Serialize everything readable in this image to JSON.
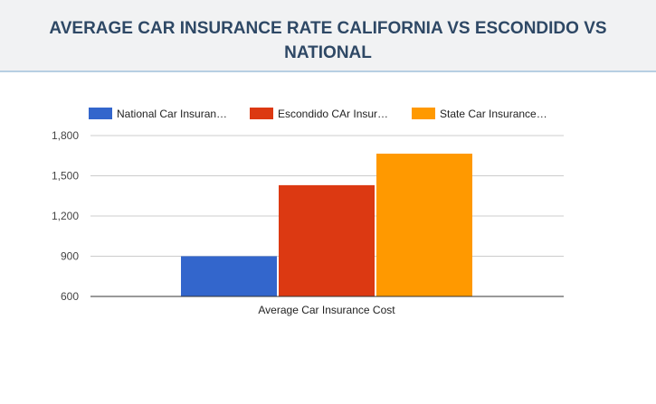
{
  "header": {
    "title": "AVERAGE CAR INSURANCE RATE CALIFORNIA VS ESCONDIDO VS NATIONAL"
  },
  "chart_data": {
    "type": "bar",
    "categories": [
      "Average Car Insurance Cost"
    ],
    "series": [
      {
        "name": "National Car Insuran…",
        "color": "#3366cc",
        "values": [
          900
        ]
      },
      {
        "name": "Escondido CAr Insur…",
        "color": "#dc3912",
        "values": [
          1430
        ]
      },
      {
        "name": "State Car Insurance…",
        "color": "#ff9900",
        "values": [
          1665
        ]
      }
    ],
    "yticks": [
      600,
      900,
      1200,
      1500,
      1800
    ],
    "ytick_labels": [
      "600",
      "900",
      "1,200",
      "1,500",
      "1,800"
    ],
    "ylim": [
      600,
      1800
    ],
    "grid": true,
    "legend": "top"
  }
}
